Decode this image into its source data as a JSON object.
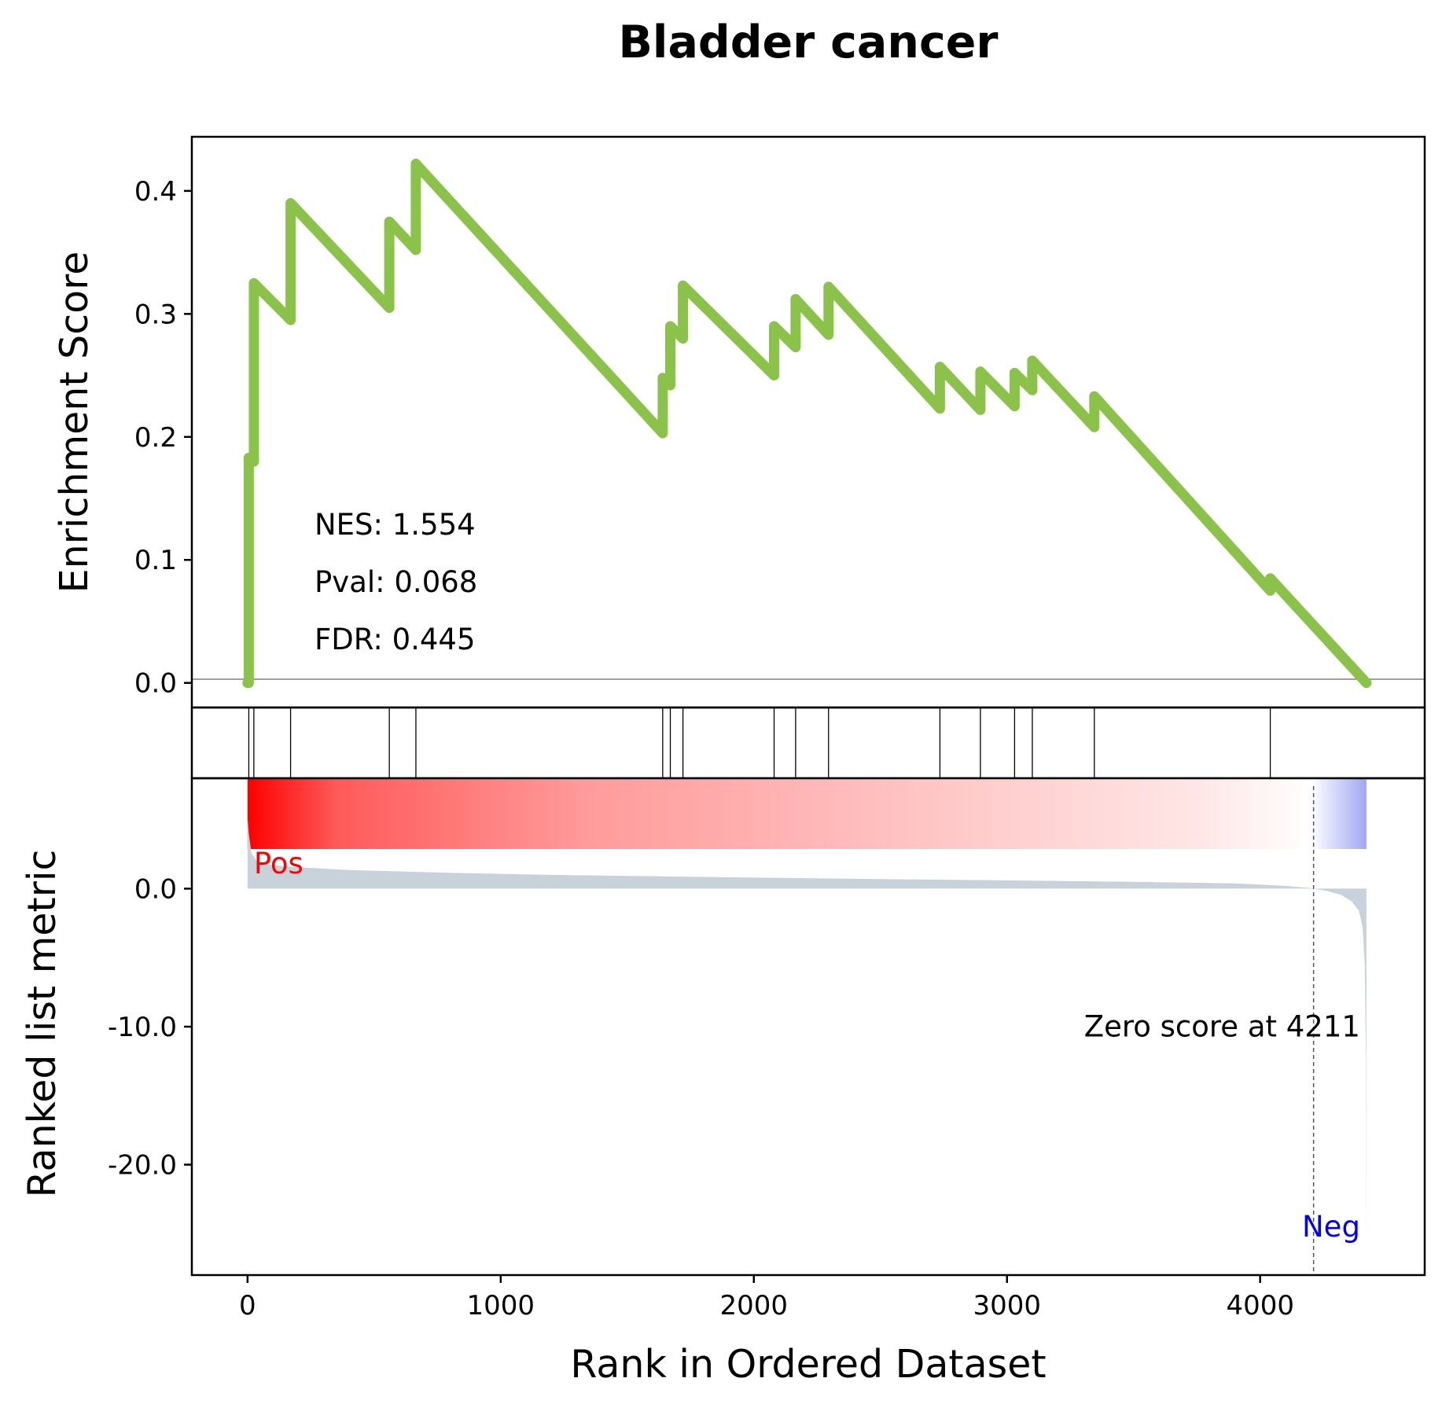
{
  "chart_data": {
    "type": "line",
    "title": "Bladder cancer",
    "xlabel": "Rank in Ordered Dataset",
    "xlim": [
      -220,
      4650
    ],
    "xticks": [
      0,
      1000,
      2000,
      3000,
      4000
    ],
    "series_color": "#8bc34a",
    "enrichment": {
      "ylabel": "Enrichment Score",
      "ylim": [
        -0.02,
        0.444
      ],
      "yticks": [
        0.0,
        0.1,
        0.2,
        0.3,
        0.4
      ],
      "ytick_labels": [
        "0.0",
        "0.1",
        "0.2",
        "0.3",
        "0.4"
      ],
      "running_es": {
        "x": [
          0,
          5,
          5,
          25,
          25,
          170,
          170,
          560,
          560,
          665,
          665,
          1640,
          1640,
          1670,
          1670,
          1720,
          1720,
          2080,
          2080,
          2165,
          2165,
          2295,
          2295,
          2735,
          2735,
          2895,
          2895,
          3030,
          3030,
          3100,
          3100,
          3345,
          3345,
          4040,
          4040,
          4420
        ],
        "y": [
          0.0,
          0.0,
          0.183,
          0.18,
          0.325,
          0.295,
          0.39,
          0.305,
          0.375,
          0.352,
          0.422,
          0.203,
          0.248,
          0.242,
          0.29,
          0.28,
          0.323,
          0.25,
          0.29,
          0.273,
          0.312,
          0.283,
          0.322,
          0.223,
          0.257,
          0.222,
          0.253,
          0.225,
          0.252,
          0.238,
          0.262,
          0.208,
          0.233,
          0.075,
          0.085,
          0.0
        ]
      },
      "stats": {
        "nes": "NES: 1.554",
        "pval": "Pval: 0.068",
        "fdr": "FDR: 0.445"
      }
    },
    "hits": [
      5,
      25,
      170,
      560,
      665,
      1640,
      1670,
      1720,
      2080,
      2165,
      2295,
      2735,
      2895,
      3030,
      3100,
      3345,
      4040
    ],
    "ranked_metric": {
      "ylabel": "Ranked list metric",
      "ylim": [
        -28.0,
        8.0
      ],
      "yticks": [
        0.0,
        -10.0,
        -20.0
      ],
      "ytick_labels": [
        "0.0",
        "-10.0",
        "-20.0"
      ],
      "n_genes": 4420,
      "zero_cross": 4211,
      "zero_label": "Zero score at 4211",
      "pos_label": "Pos",
      "neg_label": "Neg",
      "pos_color": "#ff0000",
      "neg_color": "#0000ff",
      "fill_color": "#c8d2db",
      "profile": {
        "x": [
          0,
          5,
          15,
          40,
          100,
          200,
          400,
          800,
          1200,
          1600,
          2000,
          2500,
          3000,
          3500,
          3900,
          4100,
          4200,
          4211,
          4260,
          4320,
          4360,
          4390,
          4405,
          4413,
          4418,
          4420
        ],
        "y": [
          5.2,
          4.0,
          2.6,
          1.9,
          1.7,
          1.55,
          1.35,
          1.15,
          1.0,
          0.9,
          0.8,
          0.7,
          0.6,
          0.5,
          0.38,
          0.2,
          0.05,
          0.0,
          -0.15,
          -0.45,
          -0.9,
          -1.6,
          -2.8,
          -5.5,
          -12.0,
          -26.5
        ]
      }
    }
  }
}
